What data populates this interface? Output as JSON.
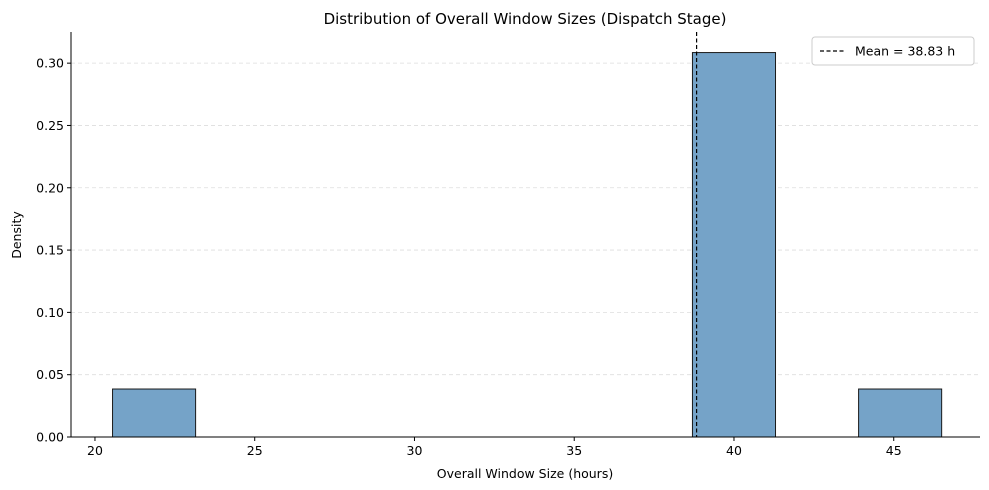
{
  "chart_data": {
    "type": "bar",
    "title": "Distribution of Overall Window Sizes (Dispatch Stage)",
    "xlabel": "Overall Window Size (hours)",
    "ylabel": "Density",
    "xlim": [
      19.25,
      47.7
    ],
    "ylim": [
      0,
      0.325
    ],
    "x_ticks": [
      20,
      25,
      30,
      35,
      40,
      45
    ],
    "x_tick_labels": [
      "20",
      "25",
      "30",
      "35",
      "40",
      "45"
    ],
    "y_ticks": [
      0,
      0.05,
      0.1,
      0.15,
      0.2,
      0.25,
      0.3
    ],
    "y_tick_labels": [
      "0.00",
      "0.05",
      "0.10",
      "0.15",
      "0.20",
      "0.25",
      "0.30"
    ],
    "bins": [
      {
        "start": 20.55,
        "end": 23.15,
        "density": 0.0385
      },
      {
        "start": 38.7,
        "end": 41.3,
        "density": 0.3085
      },
      {
        "start": 43.9,
        "end": 46.5,
        "density": 0.0385
      }
    ],
    "mean": 38.83,
    "mean_label": "Mean = 38.83 h",
    "grid": {
      "axis": "y",
      "style": "dashed"
    },
    "legend_position": "top-right",
    "colors": {
      "bar_fill": "#75a3c8",
      "bar_edge": "#1a1a1a",
      "mean_line": "#000000",
      "grid": "#dddddd"
    }
  }
}
